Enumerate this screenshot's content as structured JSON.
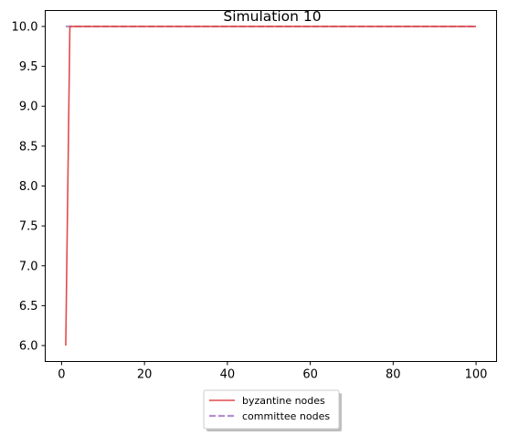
{
  "chart_data": {
    "type": "line",
    "title": "Simulation 10",
    "xlabel": "",
    "ylabel": "",
    "xlim": [
      -3.95,
      104.95
    ],
    "ylim": [
      5.8,
      10.2
    ],
    "xticks": [
      0,
      20,
      40,
      60,
      80,
      100
    ],
    "yticks": [
      6.0,
      6.5,
      7.0,
      7.5,
      8.0,
      8.5,
      9.0,
      9.5,
      10.0
    ],
    "grid": false,
    "legend": {
      "placement": "below-center"
    },
    "series": [
      {
        "name": "byzantine nodes",
        "color": "#e24a4a",
        "style": "solid",
        "x": [
          1,
          2,
          100
        ],
        "y": [
          6.0,
          10.0,
          10.0
        ]
      },
      {
        "name": "committee nodes",
        "color": "#b48fd0",
        "style": "dashed",
        "x": [
          1,
          100
        ],
        "y": [
          10.0,
          10.0
        ]
      }
    ]
  }
}
